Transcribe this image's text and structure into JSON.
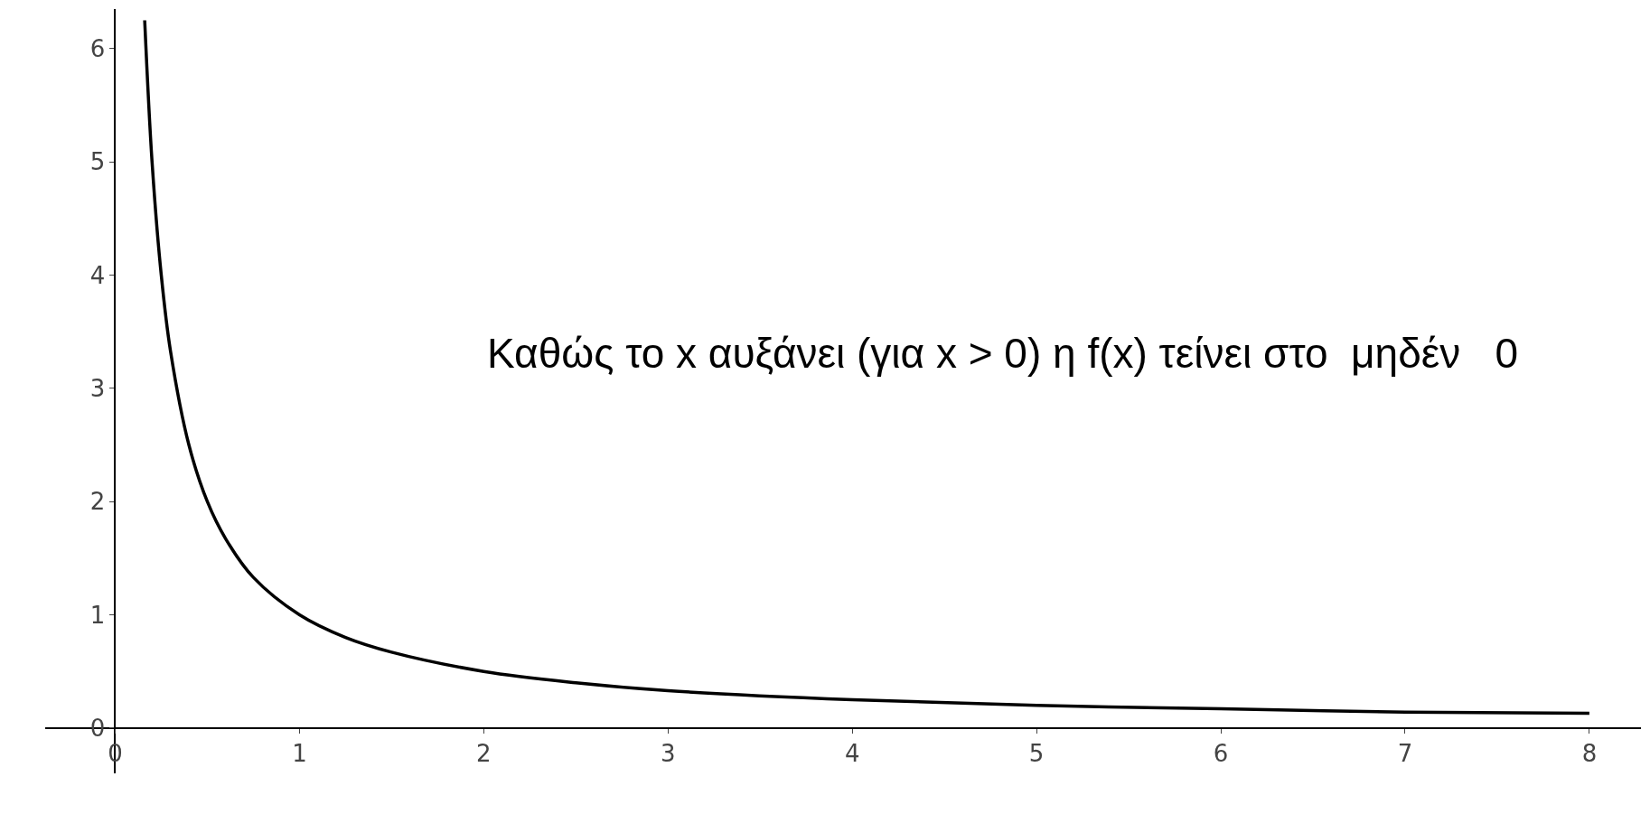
{
  "chart_data": {
    "type": "line",
    "x": [
      0.16,
      0.2,
      0.25,
      0.3,
      0.4,
      0.5,
      0.6,
      0.75,
      1,
      1.25,
      1.5,
      2,
      2.5,
      3,
      4,
      5,
      6,
      7,
      8
    ],
    "series": [
      {
        "color": "#000000",
        "values": [
          6.25,
          5.0,
          4.0,
          3.33,
          2.5,
          2.0,
          1.67,
          1.33,
          1.0,
          0.8,
          0.67,
          0.5,
          0.4,
          0.33,
          0.25,
          0.2,
          0.17,
          0.14,
          0.13
        ]
      }
    ],
    "xlim": [
      -0.38,
      8.28
    ],
    "ylim": [
      -0.4,
      6.35
    ],
    "xticks": [
      0,
      1,
      2,
      3,
      4,
      5,
      6,
      7,
      8
    ],
    "yticks": [
      0,
      1,
      2,
      3,
      4,
      5,
      6
    ],
    "marker": "none",
    "line_style": "solid",
    "annotations": [
      "Καθώς το x αυξάνει (για x > 0) η f(x) τείνει στο  μηδέν   0"
    ]
  }
}
